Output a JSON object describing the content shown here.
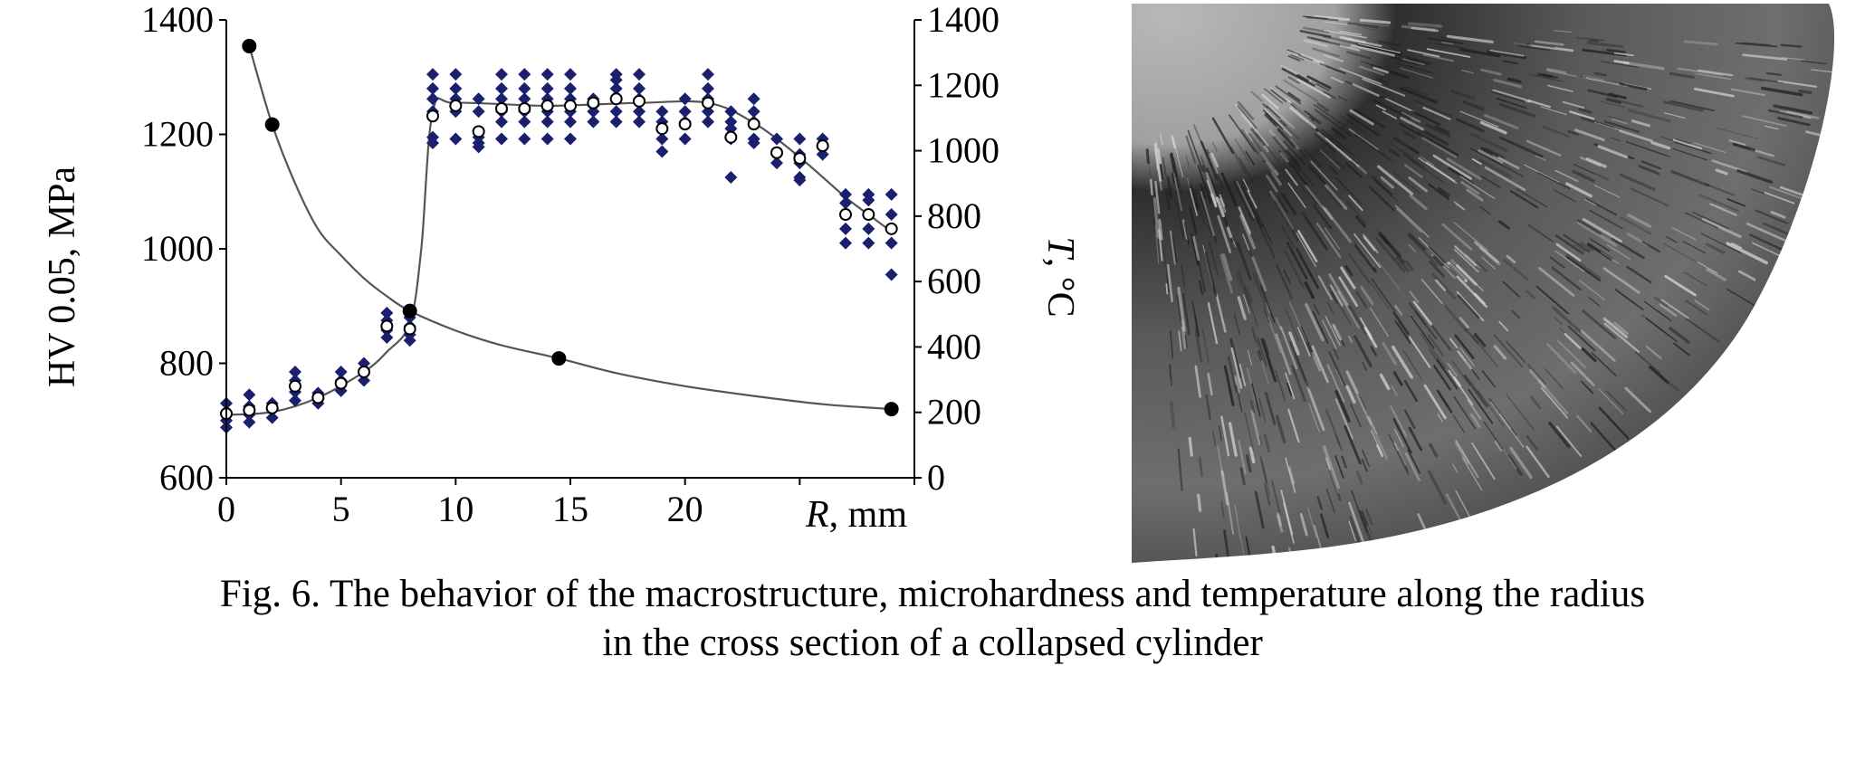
{
  "chart_data": {
    "type": "scatter",
    "x_axis": {
      "label_var": "R",
      "label_unit": ", mm",
      "range": [
        0,
        30
      ],
      "ticks": [
        {
          "value": 0,
          "label": "0"
        },
        {
          "value": 5,
          "label": "5"
        },
        {
          "value": 10,
          "label": "10"
        },
        {
          "value": 15,
          "label": "15"
        },
        {
          "value": 20,
          "label": "20"
        }
      ]
    },
    "y_left": {
      "label": "HV 0.05, MPa",
      "range": [
        600,
        1400
      ],
      "ticks": [
        600,
        800,
        1000,
        1200,
        1400
      ]
    },
    "y_right": {
      "label_var": "T",
      "label_unit": ", °C",
      "range": [
        0,
        1400
      ],
      "ticks": [
        0,
        200,
        400,
        600,
        800,
        1000,
        1200,
        1400
      ]
    },
    "series": [
      {
        "role": "hardness_individual",
        "axis": "left",
        "marker": "diamond",
        "color": "#1a1f6e",
        "points": [
          [
            0,
            730
          ],
          [
            0,
            715
          ],
          [
            0,
            700
          ],
          [
            0,
            688
          ],
          [
            1,
            745
          ],
          [
            1,
            725
          ],
          [
            1,
            710
          ],
          [
            1,
            697
          ],
          [
            2,
            730
          ],
          [
            2,
            718
          ],
          [
            2,
            705
          ],
          [
            3,
            785
          ],
          [
            3,
            770
          ],
          [
            3,
            750
          ],
          [
            3,
            735
          ],
          [
            4,
            748
          ],
          [
            4,
            738
          ],
          [
            4,
            730
          ],
          [
            5,
            785
          ],
          [
            5,
            770
          ],
          [
            5,
            752
          ],
          [
            6,
            800
          ],
          [
            6,
            785
          ],
          [
            6,
            770
          ],
          [
            7,
            888
          ],
          [
            7,
            875
          ],
          [
            7,
            858
          ],
          [
            7,
            845
          ],
          [
            8,
            880
          ],
          [
            8,
            865
          ],
          [
            8,
            850
          ],
          [
            8,
            840
          ],
          [
            9,
            1305
          ],
          [
            9,
            1280
          ],
          [
            9,
            1262
          ],
          [
            9,
            1240
          ],
          [
            9,
            1195
          ],
          [
            9,
            1185
          ],
          [
            10,
            1305
          ],
          [
            10,
            1280
          ],
          [
            10,
            1262
          ],
          [
            10,
            1240
          ],
          [
            10,
            1192
          ],
          [
            11,
            1262
          ],
          [
            11,
            1240
          ],
          [
            11,
            1195
          ],
          [
            11,
            1185
          ],
          [
            11,
            1178
          ],
          [
            12,
            1305
          ],
          [
            12,
            1280
          ],
          [
            12,
            1262
          ],
          [
            12,
            1240
          ],
          [
            12,
            1222
          ],
          [
            12,
            1192
          ],
          [
            13,
            1305
          ],
          [
            13,
            1280
          ],
          [
            13,
            1262
          ],
          [
            13,
            1240
          ],
          [
            13,
            1222
          ],
          [
            13,
            1192
          ],
          [
            14,
            1305
          ],
          [
            14,
            1280
          ],
          [
            14,
            1262
          ],
          [
            14,
            1240
          ],
          [
            14,
            1222
          ],
          [
            14,
            1192
          ],
          [
            15,
            1305
          ],
          [
            15,
            1280
          ],
          [
            15,
            1262
          ],
          [
            15,
            1240
          ],
          [
            15,
            1222
          ],
          [
            15,
            1192
          ],
          [
            16,
            1262
          ],
          [
            16,
            1250
          ],
          [
            16,
            1240
          ],
          [
            16,
            1222
          ],
          [
            17,
            1305
          ],
          [
            17,
            1295
          ],
          [
            17,
            1280
          ],
          [
            17,
            1262
          ],
          [
            17,
            1240
          ],
          [
            17,
            1222
          ],
          [
            18,
            1305
          ],
          [
            18,
            1280
          ],
          [
            18,
            1262
          ],
          [
            18,
            1240
          ],
          [
            18,
            1222
          ],
          [
            19,
            1240
          ],
          [
            19,
            1222
          ],
          [
            19,
            1210
          ],
          [
            19,
            1192
          ],
          [
            19,
            1170
          ],
          [
            20,
            1262
          ],
          [
            20,
            1240
          ],
          [
            20,
            1222
          ],
          [
            20,
            1192
          ],
          [
            21,
            1305
          ],
          [
            21,
            1280
          ],
          [
            21,
            1262
          ],
          [
            21,
            1240
          ],
          [
            21,
            1222
          ],
          [
            22,
            1240
          ],
          [
            22,
            1222
          ],
          [
            22,
            1210
          ],
          [
            22,
            1192
          ],
          [
            22,
            1125
          ],
          [
            23,
            1262
          ],
          [
            23,
            1240
          ],
          [
            23,
            1222
          ],
          [
            23,
            1192
          ],
          [
            23,
            1185
          ],
          [
            24,
            1192
          ],
          [
            24,
            1165
          ],
          [
            24,
            1150
          ],
          [
            25,
            1192
          ],
          [
            25,
            1165
          ],
          [
            25,
            1150
          ],
          [
            25,
            1125
          ],
          [
            25,
            1120
          ],
          [
            26,
            1192
          ],
          [
            26,
            1178
          ],
          [
            26,
            1165
          ],
          [
            27,
            1095
          ],
          [
            27,
            1080
          ],
          [
            27,
            1060
          ],
          [
            27,
            1035
          ],
          [
            27,
            1010
          ],
          [
            28,
            1095
          ],
          [
            28,
            1085
          ],
          [
            28,
            1060
          ],
          [
            28,
            1035
          ],
          [
            28,
            1010
          ],
          [
            29,
            1095
          ],
          [
            29,
            1060
          ],
          [
            29,
            1035
          ],
          [
            29,
            1010
          ],
          [
            29,
            955
          ]
        ]
      },
      {
        "role": "hardness_mean",
        "axis": "left",
        "marker": "open-circle",
        "color": "#000000",
        "points": [
          [
            0,
            712
          ],
          [
            1,
            718
          ],
          [
            2,
            722
          ],
          [
            3,
            760
          ],
          [
            4,
            740
          ],
          [
            5,
            765
          ],
          [
            6,
            785
          ],
          [
            7,
            865
          ],
          [
            8,
            860
          ],
          [
            9,
            1232
          ],
          [
            10,
            1250
          ],
          [
            11,
            1205
          ],
          [
            12,
            1245
          ],
          [
            13,
            1245
          ],
          [
            14,
            1250
          ],
          [
            15,
            1250
          ],
          [
            16,
            1255
          ],
          [
            17,
            1262
          ],
          [
            18,
            1258
          ],
          [
            19,
            1210
          ],
          [
            20,
            1218
          ],
          [
            21,
            1255
          ],
          [
            22,
            1195
          ],
          [
            23,
            1218
          ],
          [
            24,
            1168
          ],
          [
            25,
            1158
          ],
          [
            26,
            1180
          ],
          [
            27,
            1060
          ],
          [
            28,
            1060
          ],
          [
            29,
            1035
          ]
        ]
      },
      {
        "role": "hardness_trend",
        "axis": "left",
        "line": "smooth",
        "color": "#555555",
        "points": [
          [
            0,
            710
          ],
          [
            2,
            715
          ],
          [
            4,
            740
          ],
          [
            6,
            785
          ],
          [
            7,
            820
          ],
          [
            8,
            870
          ],
          [
            8.5,
            1000
          ],
          [
            9,
            1240
          ],
          [
            10,
            1255
          ],
          [
            14,
            1250
          ],
          [
            18,
            1255
          ],
          [
            21,
            1255
          ],
          [
            23,
            1220
          ],
          [
            25,
            1160
          ],
          [
            27,
            1090
          ],
          [
            28,
            1060
          ],
          [
            29,
            1030
          ]
        ]
      },
      {
        "role": "temperature",
        "axis": "right",
        "marker": "filled-circle",
        "color": "#000000",
        "points": [
          [
            1,
            1320
          ],
          [
            2,
            1080
          ],
          [
            8,
            510
          ],
          [
            14.5,
            365
          ],
          [
            29,
            210
          ]
        ]
      },
      {
        "role": "temperature_curve",
        "axis": "right",
        "line": "smooth",
        "color": "#555555",
        "points": [
          [
            1,
            1320
          ],
          [
            2,
            1080
          ],
          [
            3,
            900
          ],
          [
            4,
            760
          ],
          [
            5,
            680
          ],
          [
            6,
            610
          ],
          [
            7,
            555
          ],
          [
            8,
            510
          ],
          [
            10,
            450
          ],
          [
            12,
            405
          ],
          [
            14.5,
            365
          ],
          [
            17,
            320
          ],
          [
            20,
            280
          ],
          [
            23,
            250
          ],
          [
            26,
            225
          ],
          [
            29,
            210
          ]
        ]
      }
    ]
  },
  "photo": {
    "description_name": "macrostructure-photo"
  },
  "caption": {
    "line1": "Fig. 6. The behavior of the macrostructure, microhardness and temperature along the radius",
    "line2": "in the cross section of a collapsed cylinder"
  }
}
